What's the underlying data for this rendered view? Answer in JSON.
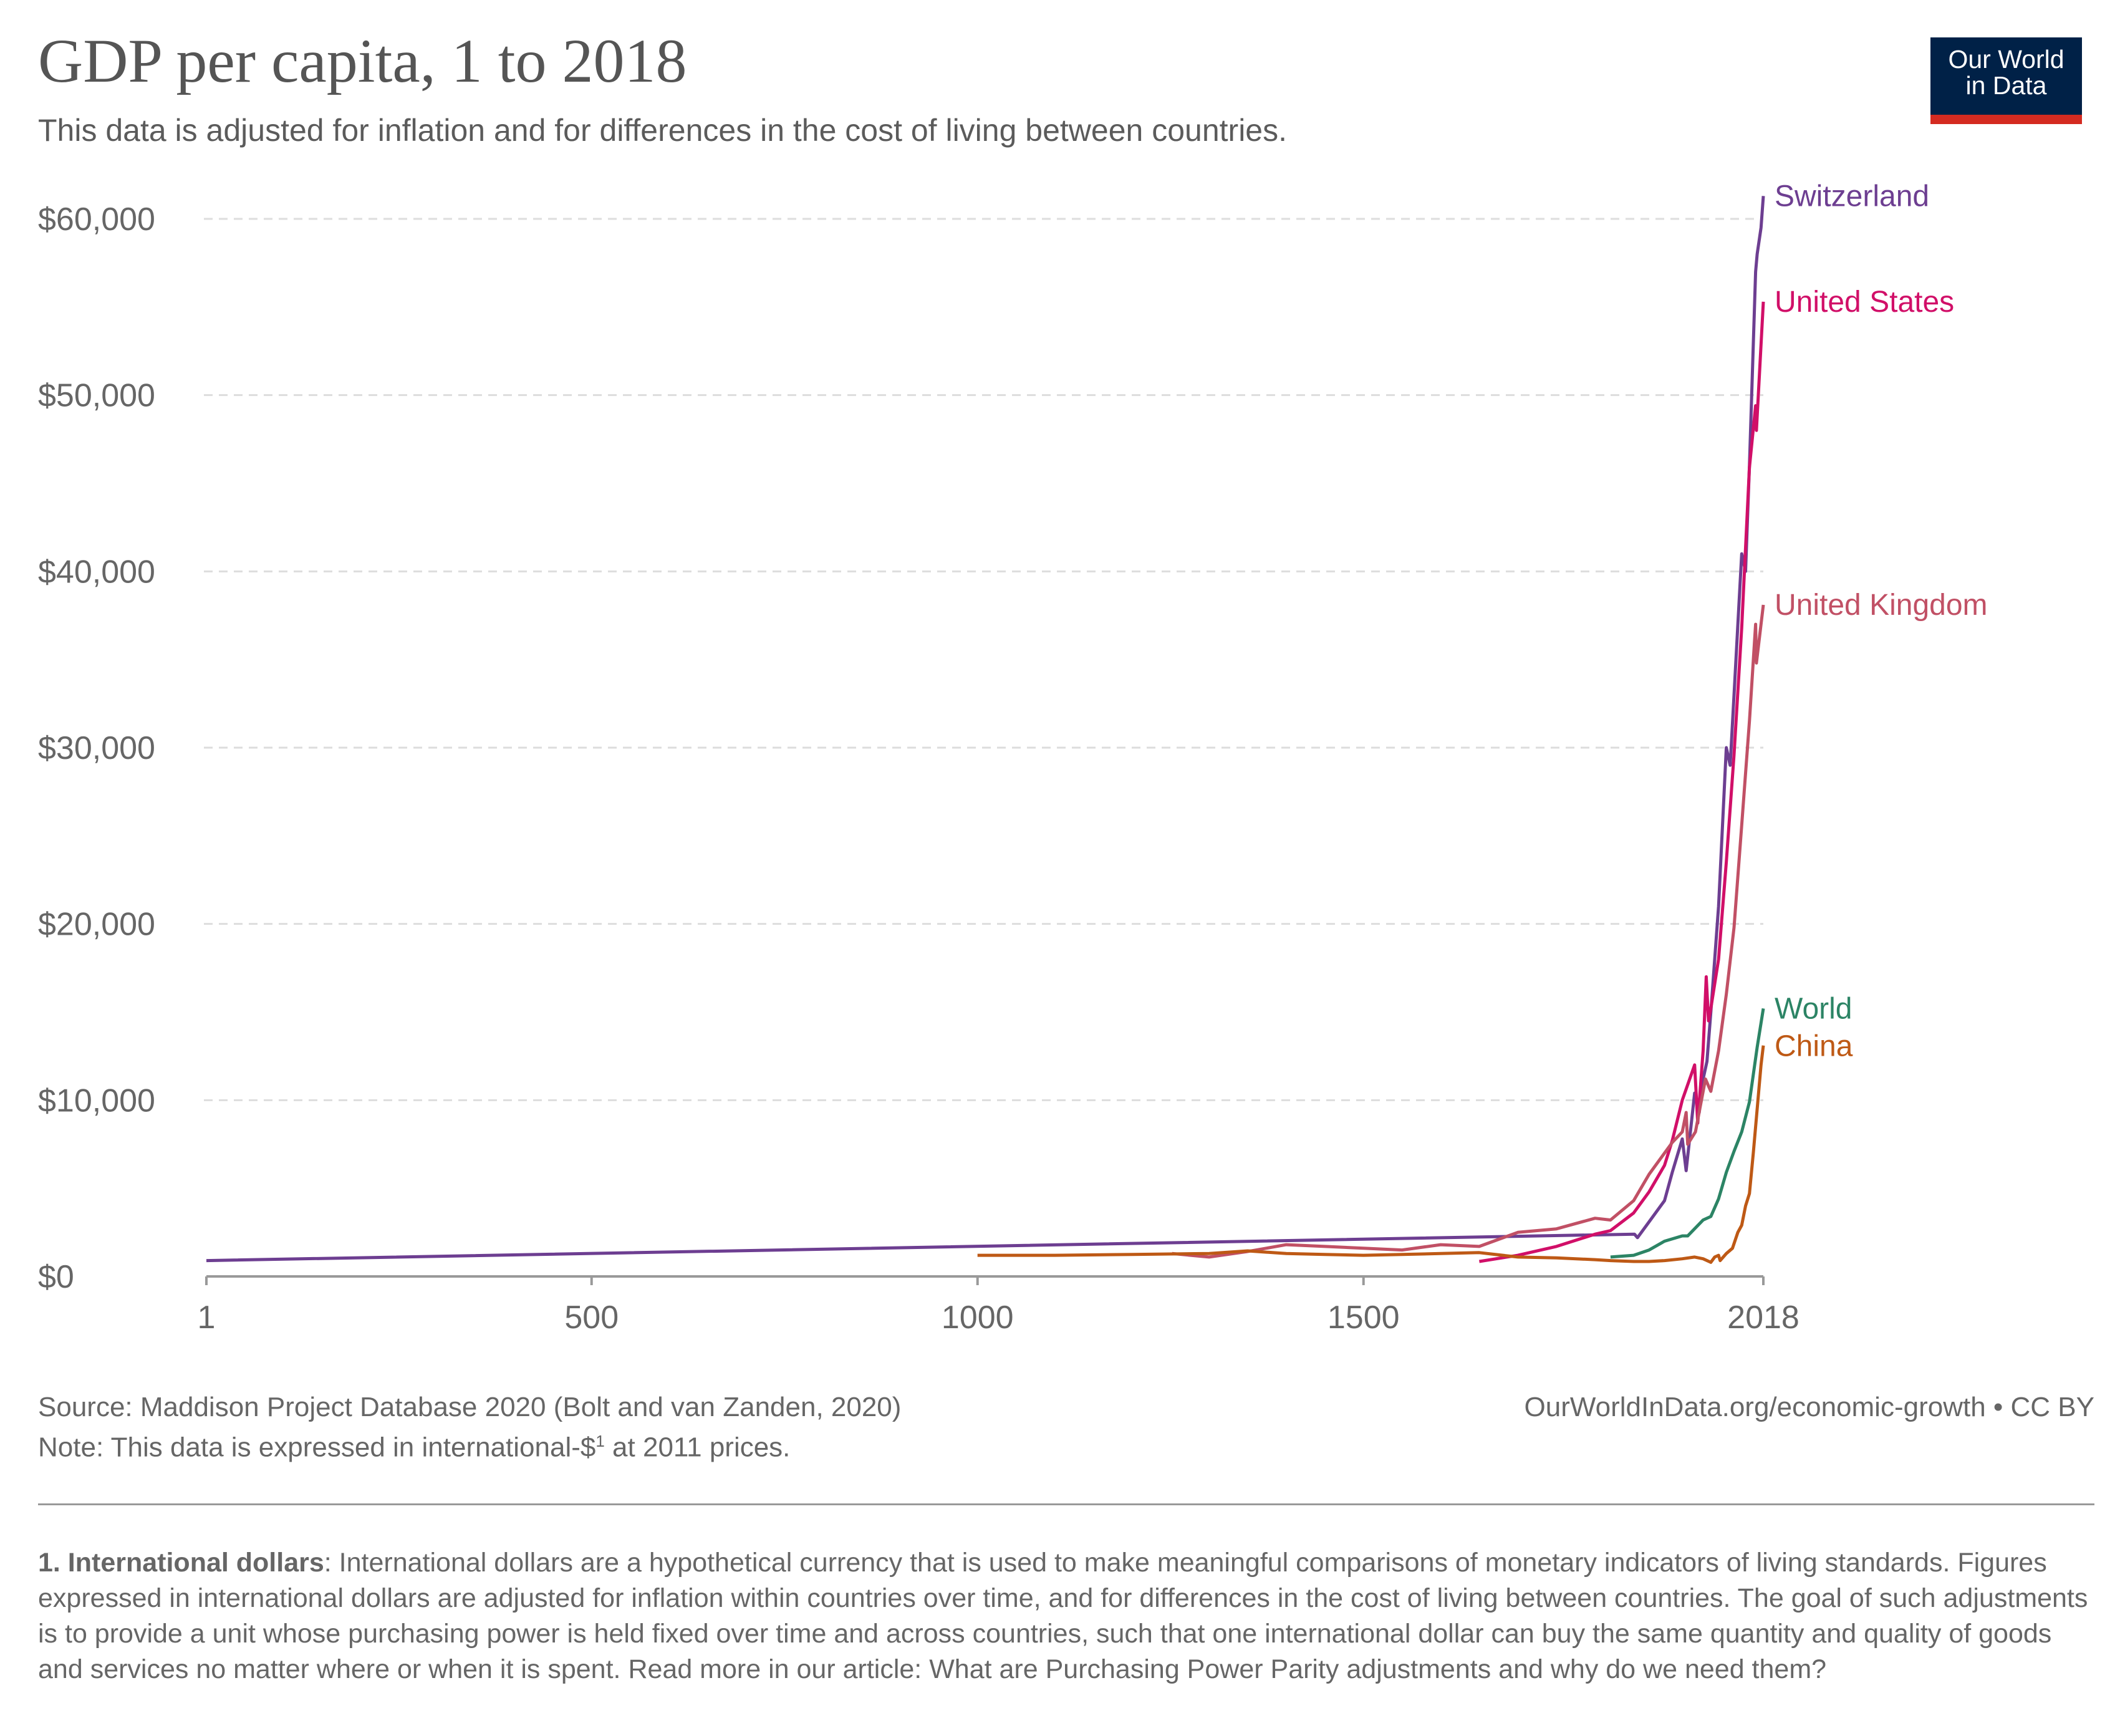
{
  "header": {
    "title": "GDP per capita, 1 to 2018",
    "subtitle": "This data is adjusted for inflation and for differences in the cost of living between countries.",
    "logo_text": "Our World in Data"
  },
  "chart_data": {
    "type": "line",
    "title": "GDP per capita, 1 to 2018",
    "xlabel": "",
    "ylabel": "",
    "xlim": [
      1,
      2018
    ],
    "ylim": [
      0,
      60000
    ],
    "x_ticks": [
      1,
      500,
      1000,
      1500,
      2018
    ],
    "y_ticks": [
      0,
      10000,
      20000,
      30000,
      40000,
      50000,
      60000
    ],
    "y_tick_labels": [
      "$0",
      "$10,000",
      "$20,000",
      "$30,000",
      "$40,000",
      "$50,000",
      "$60,000"
    ],
    "grid": "horizontal dashed",
    "legend": "inline labels at line ends (right)",
    "series": [
      {
        "name": "Switzerland",
        "color": "#6d3e91",
        "points": [
          [
            1,
            900
          ],
          [
            1851,
            2400
          ],
          [
            1855,
            2200
          ],
          [
            1870,
            3100
          ],
          [
            1890,
            4300
          ],
          [
            1900,
            5900
          ],
          [
            1913,
            7800
          ],
          [
            1918,
            6000
          ],
          [
            1929,
            10400
          ],
          [
            1935,
            9300
          ],
          [
            1939,
            11000
          ],
          [
            1945,
            12200
          ],
          [
            1950,
            15000
          ],
          [
            1960,
            21000
          ],
          [
            1970,
            30000
          ],
          [
            1975,
            29000
          ],
          [
            1980,
            33000
          ],
          [
            1990,
            41000
          ],
          [
            1995,
            40000
          ],
          [
            2000,
            46000
          ],
          [
            2008,
            57000
          ],
          [
            2010,
            58000
          ],
          [
            2015,
            59500
          ],
          [
            2018,
            61300
          ]
        ]
      },
      {
        "name": "United States",
        "color": "#d10f68",
        "points": [
          [
            1650,
            850
          ],
          [
            1700,
            1200
          ],
          [
            1750,
            1700
          ],
          [
            1800,
            2400
          ],
          [
            1820,
            2600
          ],
          [
            1850,
            3600
          ],
          [
            1870,
            4800
          ],
          [
            1890,
            6300
          ],
          [
            1900,
            7700
          ],
          [
            1913,
            10000
          ],
          [
            1929,
            12000
          ],
          [
            1933,
            8700
          ],
          [
            1940,
            12800
          ],
          [
            1944,
            17000
          ],
          [
            1947,
            14500
          ],
          [
            1950,
            15200
          ],
          [
            1960,
            18000
          ],
          [
            1970,
            23500
          ],
          [
            1980,
            29600
          ],
          [
            1990,
            36800
          ],
          [
            2000,
            45900
          ],
          [
            2008,
            49400
          ],
          [
            2009,
            48000
          ],
          [
            2018,
            55300
          ]
        ]
      },
      {
        "name": "United Kingdom",
        "color": "#c15065",
        "points": [
          [
            1252,
            1300
          ],
          [
            1300,
            1100
          ],
          [
            1348,
            1400
          ],
          [
            1400,
            1800
          ],
          [
            1450,
            1700
          ],
          [
            1500,
            1600
          ],
          [
            1550,
            1500
          ],
          [
            1600,
            1800
          ],
          [
            1650,
            1700
          ],
          [
            1700,
            2500
          ],
          [
            1750,
            2700
          ],
          [
            1800,
            3300
          ],
          [
            1820,
            3200
          ],
          [
            1850,
            4300
          ],
          [
            1870,
            5800
          ],
          [
            1900,
            7600
          ],
          [
            1913,
            8200
          ],
          [
            1918,
            9300
          ],
          [
            1920,
            7500
          ],
          [
            1930,
            8200
          ],
          [
            1943,
            11200
          ],
          [
            1950,
            10500
          ],
          [
            1960,
            12800
          ],
          [
            1970,
            16000
          ],
          [
            1980,
            19800
          ],
          [
            1990,
            25600
          ],
          [
            2000,
            31500
          ],
          [
            2008,
            37000
          ],
          [
            2009,
            34800
          ],
          [
            2018,
            38100
          ]
        ]
      },
      {
        "name": "World",
        "color": "#2c8465",
        "points": [
          [
            1820,
            1100
          ],
          [
            1850,
            1200
          ],
          [
            1870,
            1500
          ],
          [
            1890,
            2000
          ],
          [
            1913,
            2300
          ],
          [
            1920,
            2300
          ],
          [
            1940,
            3200
          ],
          [
            1950,
            3400
          ],
          [
            1960,
            4400
          ],
          [
            1970,
            5900
          ],
          [
            1980,
            7100
          ],
          [
            1990,
            8200
          ],
          [
            2000,
            9900
          ],
          [
            2010,
            13000
          ],
          [
            2018,
            15200
          ]
        ]
      },
      {
        "name": "China",
        "color": "#be5915",
        "points": [
          [
            1000,
            1200
          ],
          [
            1100,
            1200
          ],
          [
            1200,
            1250
          ],
          [
            1300,
            1300
          ],
          [
            1350,
            1450
          ],
          [
            1400,
            1300
          ],
          [
            1450,
            1250
          ],
          [
            1500,
            1200
          ],
          [
            1550,
            1250
          ],
          [
            1600,
            1300
          ],
          [
            1650,
            1350
          ],
          [
            1700,
            1100
          ],
          [
            1750,
            1050
          ],
          [
            1800,
            950
          ],
          [
            1820,
            900
          ],
          [
            1850,
            850
          ],
          [
            1870,
            850
          ],
          [
            1890,
            900
          ],
          [
            1913,
            1000
          ],
          [
            1929,
            1100
          ],
          [
            1940,
            1000
          ],
          [
            1950,
            800
          ],
          [
            1955,
            1100
          ],
          [
            1960,
            1200
          ],
          [
            1962,
            900
          ],
          [
            1970,
            1300
          ],
          [
            1978,
            1600
          ],
          [
            1985,
            2500
          ],
          [
            1990,
            2900
          ],
          [
            1995,
            4000
          ],
          [
            2000,
            4700
          ],
          [
            2005,
            7000
          ],
          [
            2010,
            9500
          ],
          [
            2015,
            12000
          ],
          [
            2018,
            13100
          ]
        ]
      }
    ]
  },
  "footer": {
    "source": "Source: Maddison Project Database 2020 (Bolt and van Zanden, 2020)",
    "note_prefix": "Note: This data is expressed in international-$",
    "note_sup": "1",
    "note_suffix": " at 2011 prices.",
    "credit": "OurWorldInData.org/economic-growth • CC BY",
    "footnote_title": "1. International dollars",
    "footnote_text": ": International dollars are a hypothetical currency that is used to make meaningful comparisons of monetary indicators of living standards. Figures expressed in international dollars are adjusted for inflation within countries over time, and for differences in the cost of living between countries. The goal of such adjustments is to provide a unit whose purchasing power is held fixed over time and across countries, such that one international dollar can buy the same quantity and quality of goods and services no matter where or when it is spent. Read more in our article: What are Purchasing Power Parity adjustments and why do we need them?"
  }
}
